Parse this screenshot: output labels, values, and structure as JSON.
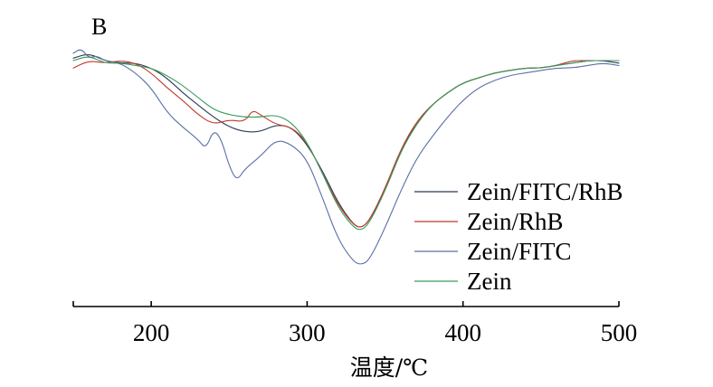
{
  "chart_data": {
    "type": "line",
    "panel_label": "B",
    "title": "",
    "xlabel": "温度/℃",
    "ylabel": "",
    "xlim": [
      150,
      500
    ],
    "ylim": [
      0,
      100
    ],
    "x_ticks": [
      200,
      300,
      400,
      500
    ],
    "x_tick_labels": [
      "200",
      "300",
      "400",
      "500"
    ],
    "grid": false,
    "legend_position": "right",
    "series": [
      {
        "name": "Zein/FITC/RhB",
        "color": "#2b3a55",
        "points": [
          [
            150,
            94
          ],
          [
            160,
            96
          ],
          [
            170,
            93
          ],
          [
            180,
            92
          ],
          [
            190,
            92
          ],
          [
            200,
            90
          ],
          [
            210,
            86
          ],
          [
            220,
            80
          ],
          [
            230,
            75
          ],
          [
            240,
            70
          ],
          [
            250,
            66
          ],
          [
            260,
            64
          ],
          [
            270,
            64
          ],
          [
            280,
            67
          ],
          [
            290,
            66
          ],
          [
            300,
            59
          ],
          [
            310,
            48
          ],
          [
            320,
            35
          ],
          [
            330,
            26
          ],
          [
            335,
            25
          ],
          [
            340,
            28
          ],
          [
            350,
            40
          ],
          [
            360,
            56
          ],
          [
            370,
            68
          ],
          [
            380,
            75
          ],
          [
            390,
            80
          ],
          [
            400,
            84
          ],
          [
            410,
            86
          ],
          [
            420,
            88
          ],
          [
            430,
            89
          ],
          [
            440,
            90
          ],
          [
            450,
            90
          ],
          [
            460,
            91
          ],
          [
            470,
            92
          ],
          [
            480,
            93
          ],
          [
            490,
            93
          ],
          [
            500,
            92
          ]
        ]
      },
      {
        "name": "Zein/RhB",
        "color": "#c0392b",
        "points": [
          [
            150,
            90
          ],
          [
            160,
            93
          ],
          [
            170,
            92
          ],
          [
            180,
            93
          ],
          [
            190,
            92
          ],
          [
            200,
            88
          ],
          [
            210,
            82
          ],
          [
            220,
            77
          ],
          [
            230,
            71
          ],
          [
            240,
            67
          ],
          [
            250,
            69
          ],
          [
            260,
            68
          ],
          [
            265,
            73
          ],
          [
            270,
            71
          ],
          [
            280,
            67
          ],
          [
            290,
            66
          ],
          [
            300,
            60
          ],
          [
            310,
            47
          ],
          [
            320,
            34
          ],
          [
            330,
            26
          ],
          [
            335,
            25
          ],
          [
            340,
            28
          ],
          [
            350,
            41
          ],
          [
            360,
            57
          ],
          [
            370,
            68
          ],
          [
            380,
            75
          ],
          [
            390,
            80
          ],
          [
            400,
            84
          ],
          [
            410,
            86
          ],
          [
            420,
            88
          ],
          [
            430,
            89
          ],
          [
            440,
            90
          ],
          [
            450,
            90
          ],
          [
            460,
            91
          ],
          [
            470,
            93
          ],
          [
            480,
            93
          ],
          [
            490,
            93
          ],
          [
            500,
            93
          ]
        ]
      },
      {
        "name": "Zein/FITC",
        "color": "#5a6fa8",
        "points": [
          [
            150,
            96
          ],
          [
            155,
            98
          ],
          [
            160,
            94
          ],
          [
            165,
            95
          ],
          [
            170,
            93
          ],
          [
            180,
            92
          ],
          [
            190,
            88
          ],
          [
            200,
            82
          ],
          [
            210,
            72
          ],
          [
            220,
            66
          ],
          [
            230,
            61
          ],
          [
            235,
            57
          ],
          [
            240,
            65
          ],
          [
            245,
            61
          ],
          [
            250,
            50
          ],
          [
            255,
            44
          ],
          [
            260,
            49
          ],
          [
            270,
            54
          ],
          [
            280,
            61
          ],
          [
            290,
            59
          ],
          [
            300,
            53
          ],
          [
            310,
            37
          ],
          [
            320,
            20
          ],
          [
            330,
            11
          ],
          [
            335,
            10
          ],
          [
            340,
            12
          ],
          [
            350,
            25
          ],
          [
            360,
            40
          ],
          [
            370,
            53
          ],
          [
            380,
            62
          ],
          [
            390,
            70
          ],
          [
            400,
            77
          ],
          [
            410,
            82
          ],
          [
            420,
            85
          ],
          [
            430,
            87
          ],
          [
            440,
            88
          ],
          [
            450,
            89
          ],
          [
            460,
            90
          ],
          [
            470,
            90
          ],
          [
            480,
            91
          ],
          [
            490,
            92
          ],
          [
            500,
            91
          ]
        ]
      },
      {
        "name": "Zein",
        "color": "#3a9a5b",
        "points": [
          [
            150,
            93
          ],
          [
            160,
            95
          ],
          [
            170,
            92
          ],
          [
            180,
            92
          ],
          [
            190,
            91
          ],
          [
            200,
            90
          ],
          [
            210,
            87
          ],
          [
            220,
            83
          ],
          [
            230,
            78
          ],
          [
            240,
            73
          ],
          [
            250,
            71
          ],
          [
            260,
            70
          ],
          [
            270,
            70
          ],
          [
            280,
            71
          ],
          [
            290,
            68
          ],
          [
            300,
            60
          ],
          [
            310,
            47
          ],
          [
            320,
            33
          ],
          [
            330,
            25
          ],
          [
            335,
            24
          ],
          [
            340,
            27
          ],
          [
            350,
            40
          ],
          [
            360,
            56
          ],
          [
            370,
            67
          ],
          [
            380,
            75
          ],
          [
            390,
            80
          ],
          [
            400,
            84
          ],
          [
            410,
            86
          ],
          [
            420,
            88
          ],
          [
            430,
            89
          ],
          [
            440,
            90
          ],
          [
            450,
            90
          ],
          [
            460,
            91
          ],
          [
            470,
            92
          ],
          [
            480,
            93
          ],
          [
            490,
            93
          ],
          [
            500,
            93
          ]
        ]
      }
    ]
  }
}
